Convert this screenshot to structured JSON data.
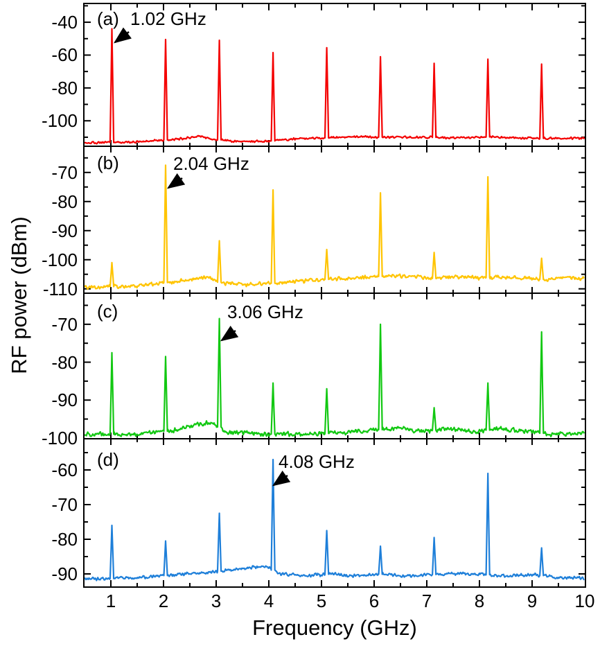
{
  "figure": {
    "xlabel": "Frequency (GHz)",
    "ylabel": "RF power (dBm)"
  },
  "chart_data": {
    "type": "line",
    "title": "",
    "xlabel": "Frequency (GHz)",
    "ylabel": "RF power (dBm)",
    "xlim": [
      0.5,
      10
    ],
    "x_major_ticks": [
      1,
      2,
      3,
      4,
      5,
      6,
      7,
      8,
      9,
      10
    ],
    "x_minor_step": 0.5,
    "grid": false,
    "legend": "none",
    "panels": [
      {
        "label": "(a)",
        "annotation": "1.02 GHz",
        "fundamental_GHz": 1.02,
        "color": "#f40000",
        "ylim": [
          -115.5,
          -29
        ],
        "y_ticks": [
          -40,
          -60,
          -80,
          -100
        ],
        "y_minor_step": 10,
        "noise_amp": 0.8,
        "peaks": {
          "freqs": [
            1.02,
            2.04,
            3.06,
            4.08,
            5.1,
            6.12,
            7.14,
            8.16,
            9.18
          ],
          "powers_dBm": [
            -44,
            -50.5,
            -51,
            -58.5,
            -55.5,
            -61,
            -65,
            -62.5,
            -65.5
          ]
        },
        "baseline": [
          [
            0.5,
            -113.5
          ],
          [
            1.4,
            -113
          ],
          [
            2.1,
            -111.5
          ],
          [
            2.45,
            -110.5
          ],
          [
            2.7,
            -109.5
          ],
          [
            3.0,
            -111.5
          ],
          [
            3.4,
            -112.5
          ],
          [
            4.0,
            -112.5
          ],
          [
            4.5,
            -111
          ],
          [
            5.0,
            -110.5
          ],
          [
            5.6,
            -109.8
          ],
          [
            6.3,
            -110
          ],
          [
            7.0,
            -110
          ],
          [
            7.5,
            -110.3
          ],
          [
            8.2,
            -109.8
          ],
          [
            8.8,
            -110.5
          ],
          [
            9.4,
            -110.8
          ],
          [
            10,
            -110.5
          ]
        ]
      },
      {
        "label": "(b)",
        "annotation": "2.04 GHz",
        "fundamental_GHz": 2.04,
        "color": "#ffc400",
        "ylim": [
          -111.5,
          -61
        ],
        "y_ticks": [
          -70,
          -80,
          -90,
          -100,
          -110
        ],
        "y_minor_step": 5,
        "noise_amp": 0.8,
        "peaks": {
          "freqs": [
            1.02,
            2.04,
            3.06,
            4.08,
            5.1,
            6.12,
            7.14,
            8.16,
            9.18
          ],
          "powers_dBm": [
            -101,
            -67.5,
            -93.5,
            -76,
            -96.5,
            -77,
            -97.5,
            -71.5,
            -99.5
          ]
        },
        "baseline": [
          [
            0.5,
            -109.5
          ],
          [
            1.5,
            -109
          ],
          [
            2.2,
            -107.5
          ],
          [
            2.8,
            -106
          ],
          [
            3.1,
            -108
          ],
          [
            3.6,
            -108.5
          ],
          [
            4.2,
            -108
          ],
          [
            4.8,
            -107
          ],
          [
            5.4,
            -106.5
          ],
          [
            6.0,
            -105.8
          ],
          [
            6.6,
            -105.5
          ],
          [
            7.1,
            -106.5
          ],
          [
            7.6,
            -105.8
          ],
          [
            8.0,
            -106.2
          ],
          [
            8.6,
            -105.8
          ],
          [
            9.2,
            -106.8
          ],
          [
            9.6,
            -106.3
          ],
          [
            10,
            -106.5
          ]
        ]
      },
      {
        "label": "(c)",
        "annotation": "3.06 GHz",
        "fundamental_GHz": 3.06,
        "color": "#12c812",
        "ylim": [
          -100.2,
          -61.8
        ],
        "y_ticks": [
          -70,
          -80,
          -90,
          -100
        ],
        "y_minor_step": 5,
        "noise_amp": 0.7,
        "peaks": {
          "freqs": [
            1.02,
            2.04,
            3.06,
            4.08,
            5.1,
            6.12,
            7.14,
            8.16,
            9.18
          ],
          "powers_dBm": [
            -77.5,
            -78.5,
            -68.5,
            -85.5,
            -87,
            -70,
            -92,
            -85.5,
            -72
          ]
        },
        "baseline": [
          [
            0.5,
            -99
          ],
          [
            1.5,
            -99
          ],
          [
            2.2,
            -98
          ],
          [
            2.6,
            -96.5
          ],
          [
            2.9,
            -95.8
          ],
          [
            3.05,
            -97
          ],
          [
            3.2,
            -98.5
          ],
          [
            4.0,
            -99
          ],
          [
            4.8,
            -99
          ],
          [
            5.5,
            -98.5
          ],
          [
            6.0,
            -98
          ],
          [
            6.5,
            -97.3
          ],
          [
            6.9,
            -98.3
          ],
          [
            7.4,
            -97.6
          ],
          [
            7.9,
            -98.3
          ],
          [
            8.4,
            -97.6
          ],
          [
            8.8,
            -98
          ],
          [
            9.3,
            -99
          ],
          [
            10,
            -98.8
          ]
        ]
      },
      {
        "label": "(d)",
        "annotation": "4.08 GHz",
        "fundamental_GHz": 4.08,
        "color": "#1e7fd9",
        "ylim": [
          -93.6,
          -51
        ],
        "y_ticks": [
          -60,
          -70,
          -80,
          -90
        ],
        "y_minor_step": 5,
        "noise_amp": 0.55,
        "peaks": {
          "freqs": [
            1.02,
            2.04,
            3.06,
            4.08,
            5.1,
            6.12,
            7.14,
            8.16,
            9.18
          ],
          "powers_dBm": [
            -76,
            -80.5,
            -72.5,
            -57,
            -77.5,
            -82,
            -79.5,
            -61,
            -82.5
          ]
        },
        "baseline": [
          [
            0.5,
            -91.5
          ],
          [
            1.2,
            -91.3
          ],
          [
            1.8,
            -90.8
          ],
          [
            2.4,
            -90
          ],
          [
            3.0,
            -89.3
          ],
          [
            3.6,
            -88.3
          ],
          [
            3.95,
            -87.7
          ],
          [
            4.2,
            -90
          ],
          [
            4.7,
            -90.5
          ],
          [
            5.2,
            -90
          ],
          [
            5.7,
            -90.6
          ],
          [
            6.2,
            -90
          ],
          [
            6.6,
            -90.6
          ],
          [
            7.1,
            -90.2
          ],
          [
            7.5,
            -89.9
          ],
          [
            8.0,
            -90
          ],
          [
            8.45,
            -90.6
          ],
          [
            9.0,
            -90.2
          ],
          [
            9.5,
            -91
          ],
          [
            10,
            -91.2
          ]
        ]
      }
    ]
  }
}
